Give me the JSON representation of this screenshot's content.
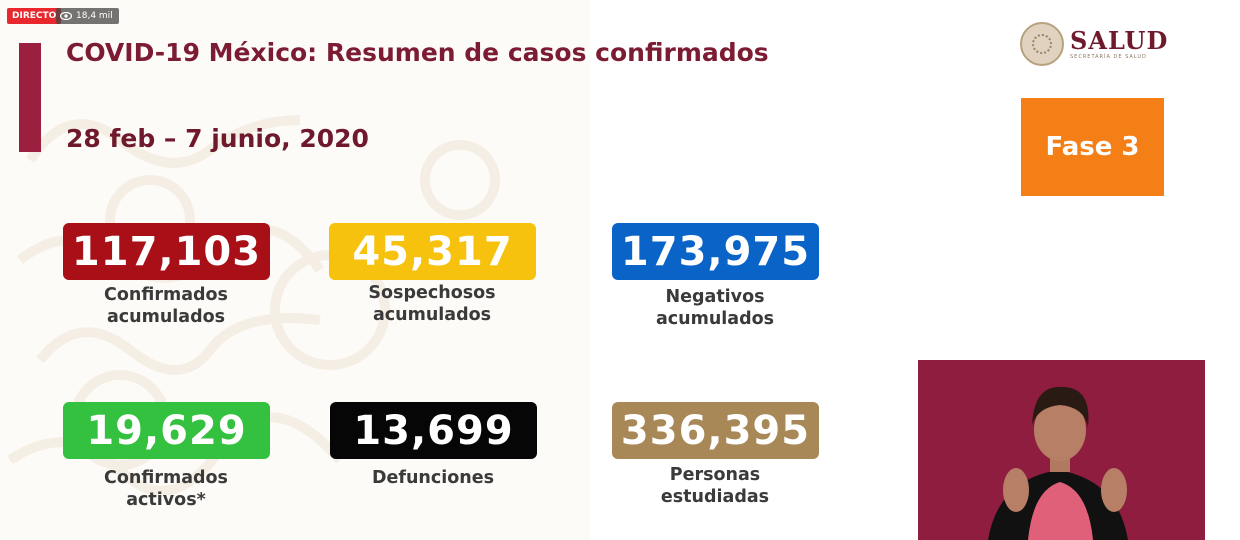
{
  "overlay": {
    "live_badge": "DIRECTO",
    "viewers": "18,4 mil"
  },
  "slide": {
    "title": "COVID-19 México: Resumen de casos confirmados",
    "date_range": "28 feb – 7 junio, 2020",
    "logo": {
      "text": "SALUD",
      "subtext": "SECRETARÍA DE SALUD"
    },
    "phase": "Fase 3",
    "stats": [
      {
        "value": "117,103",
        "label": "Confirmados\nacumulados",
        "color": "#a80f17"
      },
      {
        "value": "45,317",
        "label": "Sospechosos\nacumulados",
        "color": "#f7c20d"
      },
      {
        "value": "173,975",
        "label": "Negativos\nacumulados",
        "color": "#0a63c7"
      },
      {
        "value": "19,629",
        "label": "Confirmados\nactivos*",
        "color": "#33c13f"
      },
      {
        "value": "13,699",
        "label": "Defunciones",
        "color": "#060606"
      },
      {
        "value": "336,395",
        "label": "Personas\nestudiadas",
        "color": "#a98857"
      }
    ]
  },
  "interpreter": {
    "icon": "sign-language-interpreter-video"
  }
}
